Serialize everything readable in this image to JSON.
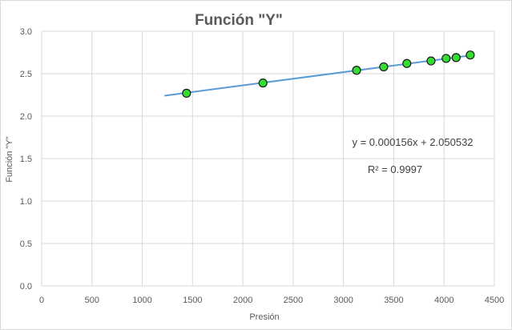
{
  "chart_data": {
    "type": "scatter",
    "title": "Función \"Y\"",
    "xlabel": "Presión",
    "ylabel": "Función \"Y\"",
    "xlim": [
      0,
      4500
    ],
    "ylim": [
      0,
      3.0
    ],
    "x_ticks": [
      "0",
      "500",
      "1000",
      "1500",
      "2000",
      "2500",
      "3000",
      "3500",
      "4000",
      "4500"
    ],
    "y_ticks": [
      "0.0",
      "0.5",
      "1.0",
      "1.5",
      "2.0",
      "2.5",
      "3.0"
    ],
    "grid": true,
    "legend": "none",
    "points": [
      {
        "x": 1440,
        "y": 2.27
      },
      {
        "x": 2200,
        "y": 2.39
      },
      {
        "x": 3130,
        "y": 2.54
      },
      {
        "x": 3400,
        "y": 2.58
      },
      {
        "x": 3630,
        "y": 2.62
      },
      {
        "x": 3870,
        "y": 2.65
      },
      {
        "x": 4020,
        "y": 2.68
      },
      {
        "x": 4120,
        "y": 2.69
      },
      {
        "x": 4260,
        "y": 2.72
      }
    ],
    "trendline": {
      "slope": 0.000156,
      "intercept": 2.050532,
      "x_range": [
        1220,
        4260
      ],
      "equation": "y = 0.000156x + 2.050532",
      "r_squared": "R² = 0.9997"
    },
    "colors": {
      "marker_fill": "#33dd33",
      "marker_stroke": "#1a1a1a",
      "trendline": "#5b9bd5",
      "grid": "#d9d9d9"
    }
  }
}
